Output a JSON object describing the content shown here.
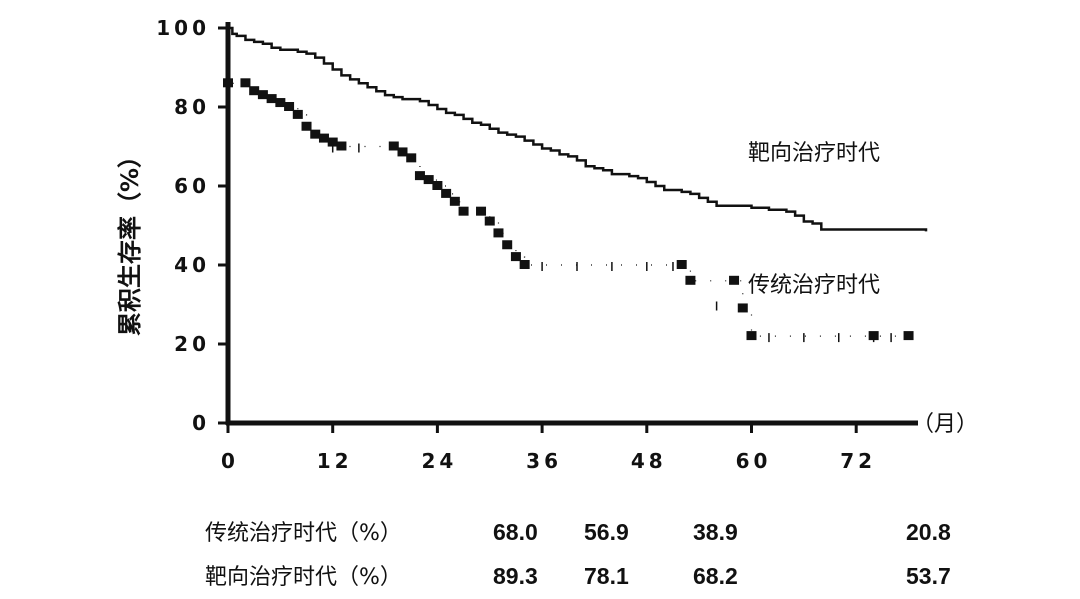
{
  "chart_data": {
    "type": "line",
    "ylabel": "累积生存率（%）",
    "x_unit": "（月）",
    "xlim": [
      0,
      80
    ],
    "ylim": [
      0,
      100
    ],
    "x_ticks": [
      "0",
      "12",
      "24",
      "36",
      "48",
      "60",
      "72"
    ],
    "y_ticks": [
      "0",
      "20",
      "40",
      "60",
      "80",
      "100"
    ],
    "grid": false,
    "series": [
      {
        "name": "靶向治疗时代",
        "style": "solid step line",
        "points": [
          [
            0,
            100
          ],
          [
            0.5,
            98.5
          ],
          [
            1,
            98
          ],
          [
            2,
            97
          ],
          [
            3,
            96.5
          ],
          [
            4,
            96
          ],
          [
            5,
            95
          ],
          [
            6,
            94.5
          ],
          [
            8,
            94
          ],
          [
            9,
            93.5
          ],
          [
            10,
            92.5
          ],
          [
            11,
            91
          ],
          [
            12,
            89.5
          ],
          [
            13,
            88
          ],
          [
            14,
            87
          ],
          [
            15,
            86
          ],
          [
            16,
            85
          ],
          [
            17,
            84
          ],
          [
            18,
            83
          ],
          [
            19,
            82.5
          ],
          [
            20,
            82
          ],
          [
            22,
            81.5
          ],
          [
            23,
            80.5
          ],
          [
            24,
            79.5
          ],
          [
            25,
            78.5
          ],
          [
            26,
            78
          ],
          [
            27,
            77
          ],
          [
            28,
            76
          ],
          [
            29,
            75.5
          ],
          [
            30,
            74.5
          ],
          [
            31,
            73.5
          ],
          [
            32,
            73
          ],
          [
            33,
            72.5
          ],
          [
            34,
            71.5
          ],
          [
            35,
            70.5
          ],
          [
            36,
            69.5
          ],
          [
            37,
            69
          ],
          [
            38,
            68
          ],
          [
            39,
            67.5
          ],
          [
            40,
            66.5
          ],
          [
            41,
            65
          ],
          [
            42,
            64.5
          ],
          [
            43,
            64
          ],
          [
            44,
            63
          ],
          [
            46,
            62.5
          ],
          [
            47,
            62
          ],
          [
            48,
            61
          ],
          [
            49,
            60
          ],
          [
            50,
            59
          ],
          [
            52,
            58.5
          ],
          [
            53,
            58
          ],
          [
            54,
            57
          ],
          [
            55,
            56
          ],
          [
            56,
            55
          ],
          [
            60,
            54.5
          ],
          [
            62,
            54
          ],
          [
            64,
            53.5
          ],
          [
            65,
            52.5
          ],
          [
            66,
            51
          ],
          [
            67,
            50.5
          ],
          [
            68,
            49
          ],
          [
            74,
            49
          ],
          [
            80,
            48.5
          ]
        ]
      },
      {
        "name": "传统治疗时代",
        "style": "dotted step line with censor ticks",
        "points": [
          [
            0,
            100
          ],
          [
            0,
            86
          ],
          [
            2,
            86
          ],
          [
            3,
            84
          ],
          [
            4,
            83
          ],
          [
            5,
            82
          ],
          [
            6,
            81
          ],
          [
            7,
            80
          ],
          [
            8,
            78
          ],
          [
            9,
            75
          ],
          [
            10,
            73
          ],
          [
            11,
            72
          ],
          [
            12,
            71
          ],
          [
            13,
            70
          ],
          [
            19,
            70
          ],
          [
            20,
            68.5
          ],
          [
            21,
            67
          ],
          [
            22,
            62.5
          ],
          [
            23,
            61.5
          ],
          [
            24,
            60
          ],
          [
            25,
            58
          ],
          [
            26,
            56
          ],
          [
            27,
            53.5
          ],
          [
            29,
            53.5
          ],
          [
            30,
            51
          ],
          [
            31,
            48
          ],
          [
            32,
            45
          ],
          [
            33,
            42
          ],
          [
            34,
            40
          ],
          [
            52,
            40
          ],
          [
            53,
            36
          ],
          [
            58,
            36
          ],
          [
            59,
            29
          ],
          [
            60,
            22
          ],
          [
            74,
            22
          ],
          [
            78,
            22
          ]
        ]
      }
    ],
    "table": {
      "rows": [
        {
          "label": "传统治疗时代（%）",
          "values": [
            "68.0",
            "56.9",
            "38.9",
            "20.8"
          ]
        },
        {
          "label": "靶向治疗时代（%）",
          "values": [
            "89.3",
            "78.1",
            "68.2",
            "53.7"
          ]
        }
      ]
    },
    "colors": {
      "ink": "#111111",
      "background": "#ffffff"
    }
  }
}
